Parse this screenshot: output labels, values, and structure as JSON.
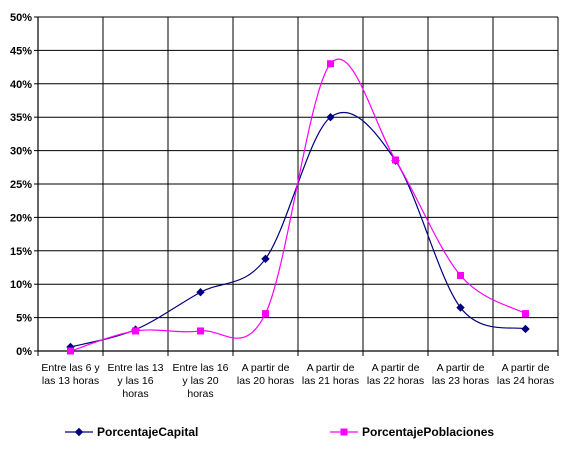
{
  "chart_data": {
    "type": "line",
    "smooth": true,
    "categories": [
      [
        "Entre las 6 y",
        "las 13 horas"
      ],
      [
        "Entre las 13",
        "y las 16",
        "horas"
      ],
      [
        "Entre las 16",
        "y las 20",
        "horas"
      ],
      [
        "A partir de",
        "las 20 horas"
      ],
      [
        "A partir de",
        "las 21 horas"
      ],
      [
        "A partir de",
        "las 22 horas"
      ],
      [
        "A partir de",
        "las 23 horas"
      ],
      [
        "A partir de",
        "las 24 horas"
      ]
    ],
    "y_ticks": [
      "0%",
      "5%",
      "10%",
      "15%",
      "20%",
      "25%",
      "30%",
      "35%",
      "40%",
      "45%",
      "50%"
    ],
    "ylim": [
      0,
      50
    ],
    "grid": true,
    "legend_position": "bottom",
    "series": [
      {
        "name": "PorcentajeCapital",
        "color": "#000080",
        "marker": "diamond",
        "values": [
          0.6,
          3.2,
          8.8,
          13.8,
          35.0,
          28.5,
          6.5,
          3.3
        ]
      },
      {
        "name": "PorcentajePoblaciones",
        "color": "#ff00ff",
        "marker": "square",
        "values": [
          0.0,
          3.0,
          3.0,
          5.6,
          43.0,
          28.6,
          11.3,
          5.6
        ]
      }
    ]
  }
}
